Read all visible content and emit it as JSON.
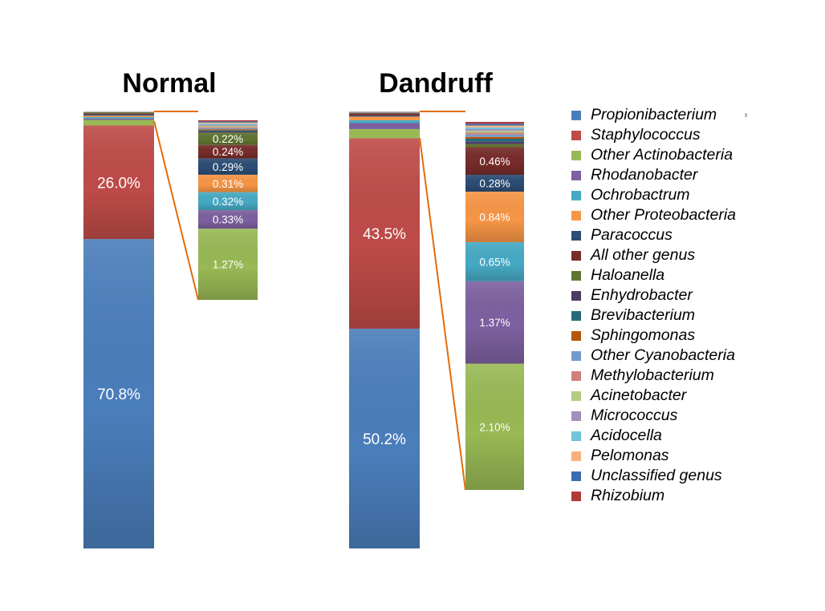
{
  "chart_data": {
    "type": "bar",
    "stacked": true,
    "panels": [
      {
        "title": "Normal",
        "main_labels": [
          "70.8%",
          "26.0%"
        ],
        "inset_labels": [
          "1.27%",
          "0.33%",
          "0.32%",
          "0.31%",
          "0.29%",
          "0.24%",
          "0.22%"
        ],
        "series": [
          {
            "name": "Propionibacterium",
            "value": 70.8
          },
          {
            "name": "Staphylococcus",
            "value": 26.0
          },
          {
            "name": "Other Actinobacteria",
            "value": 1.27
          },
          {
            "name": "Rhodanobacter",
            "value": 0.33
          },
          {
            "name": "Ochrobactrum",
            "value": 0.32
          },
          {
            "name": "Other Proteobacteria",
            "value": 0.31
          },
          {
            "name": "Paracoccus",
            "value": 0.29
          },
          {
            "name": "All other genus",
            "value": 0.24
          },
          {
            "name": "Haloanella",
            "value": 0.22
          },
          {
            "name": "Enhydrobacter",
            "value": 0.02
          },
          {
            "name": "Brevibacterium",
            "value": 0.02
          },
          {
            "name": "Sphingomonas",
            "value": 0.02
          },
          {
            "name": "Other Cyanobacteria",
            "value": 0.02
          },
          {
            "name": "Methylobacterium",
            "value": 0.02
          },
          {
            "name": "Acinetobacter",
            "value": 0.02
          },
          {
            "name": "Micrococcus",
            "value": 0.02
          },
          {
            "name": "Acidocella",
            "value": 0.02
          },
          {
            "name": "Pelomonas",
            "value": 0.02
          },
          {
            "name": "Unclassified genus",
            "value": 0.02
          },
          {
            "name": "Rhizobium",
            "value": 0.02
          }
        ]
      },
      {
        "title": "Dandruff",
        "main_labels": [
          "50.2%",
          "43.5%"
        ],
        "inset_labels": [
          "2.10%",
          "1.37%",
          "0.65%",
          "0.84%",
          "0.28%",
          "0.46%"
        ],
        "series": [
          {
            "name": "Propionibacterium",
            "value": 50.2
          },
          {
            "name": "Staphylococcus",
            "value": 43.5
          },
          {
            "name": "Other Actinobacteria",
            "value": 2.1
          },
          {
            "name": "Rhodanobacter",
            "value": 1.37
          },
          {
            "name": "Ochrobactrum",
            "value": 0.65
          },
          {
            "name": "Other Proteobacteria",
            "value": 0.84
          },
          {
            "name": "Paracoccus",
            "value": 0.28
          },
          {
            "name": "All other genus",
            "value": 0.46
          },
          {
            "name": "Haloanella",
            "value": 0.05
          },
          {
            "name": "Enhydrobacter",
            "value": 0.04
          },
          {
            "name": "Brevibacterium",
            "value": 0.05
          },
          {
            "name": "Sphingomonas",
            "value": 0.03
          },
          {
            "name": "Other Cyanobacteria",
            "value": 0.04
          },
          {
            "name": "Methylobacterium",
            "value": 0.03
          },
          {
            "name": "Acinetobacter",
            "value": 0.03
          },
          {
            "name": "Micrococcus",
            "value": 0.03
          },
          {
            "name": "Acidocella",
            "value": 0.03
          },
          {
            "name": "Pelomonas",
            "value": 0.03
          },
          {
            "name": "Unclassified genus",
            "value": 0.03
          },
          {
            "name": "Rhizobium",
            "value": 0.03
          }
        ]
      }
    ],
    "legend": [
      {
        "name": "Propionibacterium",
        "color": "#4a7ebb"
      },
      {
        "name": "Staphylococcus",
        "color": "#be4b48"
      },
      {
        "name": "Other Actinobacteria",
        "color": "#98b954"
      },
      {
        "name": "Rhodanobacter",
        "color": "#7d60a0"
      },
      {
        "name": "Ochrobactrum",
        "color": "#46aac5"
      },
      {
        "name": "Other Proteobacteria",
        "color": "#f79646"
      },
      {
        "name": "Paracoccus",
        "color": "#2c4d75"
      },
      {
        "name": "All other genus",
        "color": "#772c2a"
      },
      {
        "name": "Haloanella",
        "color": "#5f7530"
      },
      {
        "name": "Enhydrobacter",
        "color": "#4d3b62"
      },
      {
        "name": "Brevibacterium",
        "color": "#276a7c"
      },
      {
        "name": "Sphingomonas",
        "color": "#b65708"
      },
      {
        "name": "Other Cyanobacteria",
        "color": "#729aca"
      },
      {
        "name": "Methylobacterium",
        "color": "#d07f7d"
      },
      {
        "name": "Acinetobacter",
        "color": "#b3cc82"
      },
      {
        "name": "Micrococcus",
        "color": "#a390bc"
      },
      {
        "name": "Acidocella",
        "color": "#6fc5da"
      },
      {
        "name": "Pelomonas",
        "color": "#f9b07c"
      },
      {
        "name": "Unclassified genus",
        "color": "#3a6daf"
      },
      {
        "name": "Rhizobium",
        "color": "#b03a3a"
      }
    ],
    "grid": false,
    "legend_position": "right",
    "connector_color": "#e46c0a"
  }
}
